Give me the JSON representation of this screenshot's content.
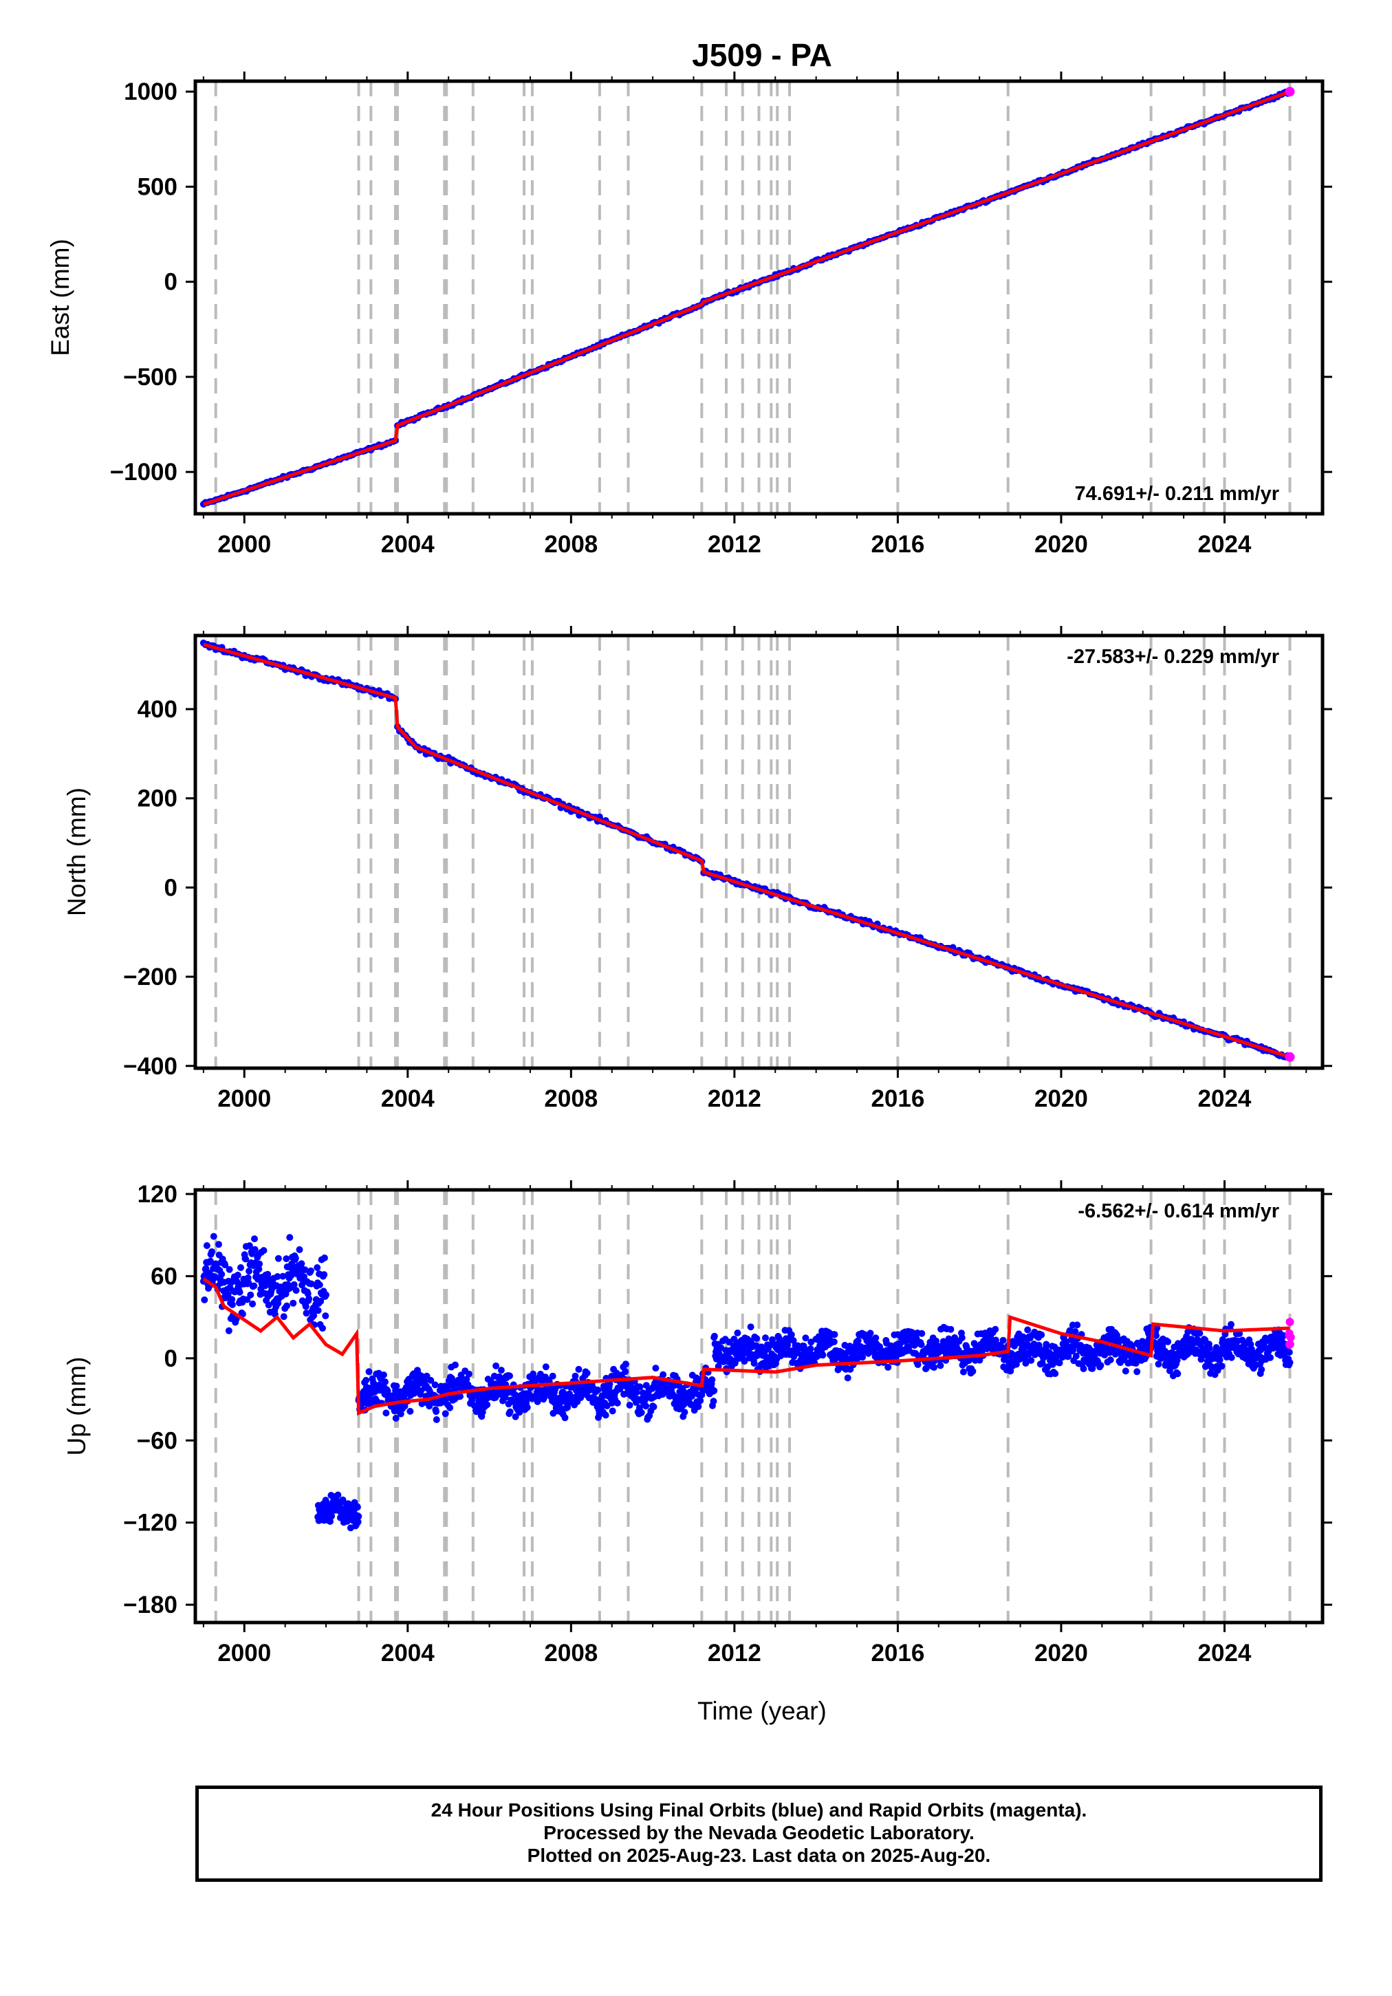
{
  "chart_data": {
    "type": "scatter",
    "title": "J509 - PA",
    "x": {
      "label": "Time (year)",
      "range": [
        1998.8,
        2026.4
      ],
      "ticks": [
        2000,
        2004,
        2008,
        2012,
        2016,
        2020,
        2024
      ]
    },
    "event_lines": [
      1999.3,
      2002.8,
      2003.1,
      2003.7,
      2003.75,
      2004.9,
      2004.95,
      2005.6,
      2006.85,
      2007.05,
      2008.7,
      2009.4,
      2011.2,
      2011.8,
      2012.2,
      2012.6,
      2012.9,
      2013.05,
      2013.35,
      2016.0,
      2018.7,
      2022.2,
      2023.5,
      2024.0,
      2025.6
    ],
    "colors": {
      "final_orbits": "#0000ff",
      "rapid_orbits": "#ff00ff",
      "model": "#ff0000",
      "event_line": "#bbbbbb"
    },
    "panels": [
      {
        "component": "East",
        "ylabel": "East (mm)",
        "ylim": [
          -1220,
          1055
        ],
        "yticks": [
          -1000,
          -500,
          0,
          500,
          1000
        ],
        "ytick_labels": [
          "−1000",
          "−500",
          "0",
          "500",
          "1000"
        ],
        "rate_text": "74.691+/- 0.211 mm/yr",
        "rate_position": "bottom-right",
        "series": [
          {
            "name": "",
            "kind": "position-trend",
            "x": [
              1999.0,
              2003.7,
              2003.75,
              2005.0,
              2011.2,
              2011.25,
              2025.6
            ],
            "y": [
              -1170,
              -835,
              -755,
              -650,
              -120,
              -105,
              1000
            ]
          }
        ]
      },
      {
        "component": "North",
        "ylabel": "North (mm)",
        "ylim": [
          -405,
          565
        ],
        "yticks": [
          -400,
          -200,
          0,
          200,
          400
        ],
        "ytick_labels": [
          "−400",
          "−200",
          "0",
          "200",
          "400"
        ],
        "rate_text": "-27.583+/- 0.229 mm/yr",
        "rate_position": "top-right",
        "series": [
          {
            "name": "",
            "kind": "position-trend",
            "x": [
              1999.0,
              2003.7,
              2003.75,
              2004.2,
              2011.2,
              2011.25,
              2025.6
            ],
            "y": [
              545,
              425,
              360,
              315,
              60,
              35,
              -380
            ]
          }
        ]
      },
      {
        "component": "Up",
        "ylabel": "Up (mm)",
        "ylim": [
          -193,
          123
        ],
        "yticks": [
          -180,
          -120,
          -60,
          0,
          60,
          120
        ],
        "ytick_labels": [
          "−180",
          "−120",
          "−60",
          "0",
          "60",
          "120"
        ],
        "rate_text": "-6.562+/- 0.614 mm/yr",
        "rate_position": "top-right",
        "series": [
          {
            "name": "",
            "kind": "model-curve",
            "x": [
              1999.0,
              1999.3,
              1999.5,
              2000.0,
              2000.4,
              2000.8,
              2001.2,
              2001.6,
              2002.0,
              2002.4,
              2002.75,
              2002.8,
              2003.2,
              2003.8,
              2004.5,
              2005.0,
              2006.0,
              2007.0,
              2008.0,
              2009.0,
              2010.0,
              2011.2,
              2011.25,
              2013.0,
              2014.0,
              2016.0,
              2018.0,
              2018.7,
              2018.75,
              2020.0,
              2021.0,
              2022.2,
              2022.25,
              2024.0,
              2025.6
            ],
            "y": [
              58,
              52,
              38,
              28,
              20,
              30,
              15,
              25,
              10,
              3,
              18,
              -40,
              -35,
              -32,
              -30,
              -26,
              -22,
              -20,
              -18,
              -16,
              -14,
              -20,
              -8,
              -10,
              -5,
              -2,
              2,
              5,
              30,
              18,
              12,
              2,
              25,
              20,
              22
            ]
          },
          {
            "name": "",
            "kind": "scatter-clusters",
            "clusters": [
              {
                "x_range": [
                  1999.0,
                  2002.0
                ],
                "y_center": 55,
                "y_spread": 22
              },
              {
                "x_range": [
                  2001.8,
                  2002.8
                ],
                "y_center": -112,
                "y_spread": 9
              },
              {
                "x_range": [
                  2002.8,
                  2011.5
                ],
                "y_center": -25,
                "y_spread": 13
              },
              {
                "x_range": [
                  2011.5,
                  2025.6
                ],
                "y_center": 6,
                "y_spread": 12
              }
            ]
          }
        ]
      }
    ],
    "footer": [
      "24 Hour Positions Using Final Orbits (blue) and Rapid Orbits (magenta).",
      "Processed by the Nevada Geodetic Laboratory.",
      "Plotted on 2025-Aug-23. Last data on 2025-Aug-20."
    ]
  }
}
